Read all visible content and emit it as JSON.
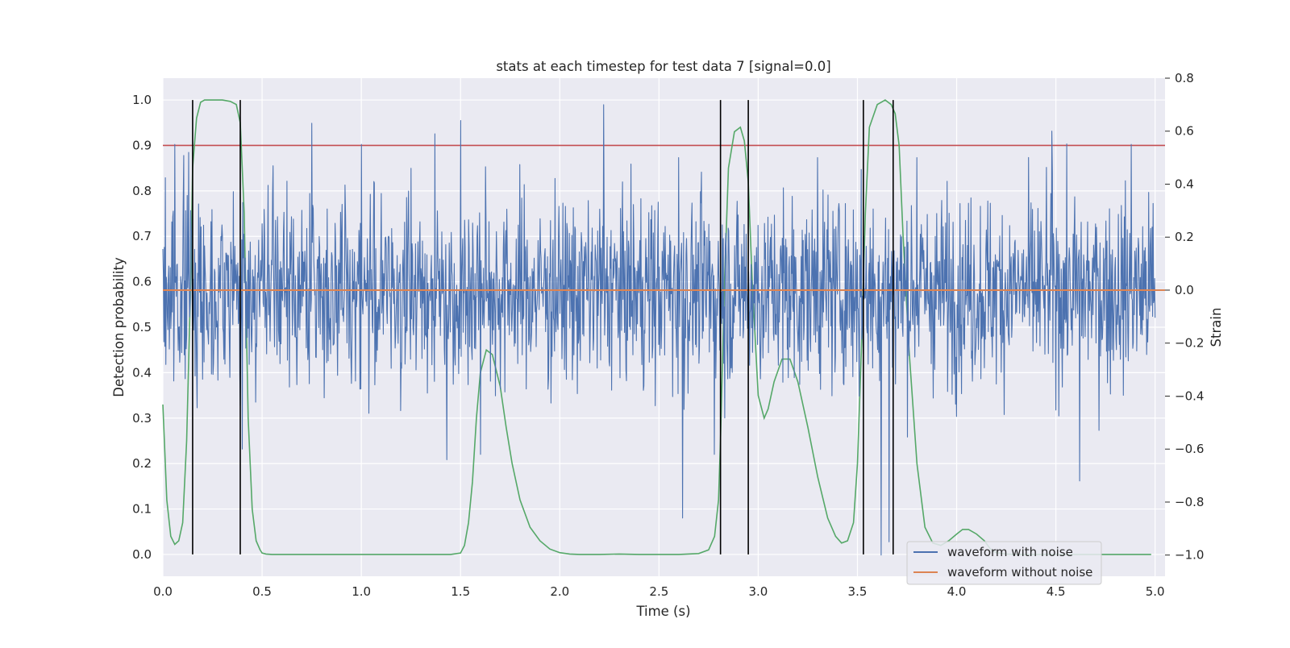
{
  "chart_data": {
    "type": "line",
    "title": "stats at each timestep for test data 7 [signal=0.0]",
    "xlabel": "Time (s)",
    "ylabel": "Detection probability",
    "y2label": "Strain",
    "xlim": [
      0.0,
      5.05
    ],
    "ylim": [
      -0.048,
      1.048
    ],
    "y2lim": [
      -1.08,
      0.8
    ],
    "x_ticks": [
      0.0,
      0.5,
      1.0,
      1.5,
      2.0,
      2.5,
      3.0,
      3.5,
      4.0,
      4.5,
      5.0
    ],
    "x_tick_labels": [
      "0.0",
      "0.5",
      "1.0",
      "1.5",
      "2.0",
      "2.5",
      "3.0",
      "3.5",
      "4.0",
      "4.5",
      "5.0"
    ],
    "y_ticks": [
      0.0,
      0.1,
      0.2,
      0.3,
      0.4,
      0.5,
      0.6,
      0.7,
      0.8,
      0.9,
      1.0
    ],
    "y_tick_labels": [
      "0.0",
      "0.1",
      "0.2",
      "0.3",
      "0.4",
      "0.5",
      "0.6",
      "0.7",
      "0.8",
      "0.9",
      "1.0"
    ],
    "y2_ticks": [
      -1.0,
      -0.8,
      -0.6,
      -0.4,
      -0.2,
      0.0,
      0.2,
      0.4,
      0.6,
      0.8
    ],
    "y2_tick_labels": [
      "−1.0",
      "−0.8",
      "−0.6",
      "−0.4",
      "−0.2",
      "0.0",
      "0.2",
      "0.4",
      "0.6",
      "0.8"
    ],
    "grid": true,
    "legend_position": "bottom-right",
    "threshold": {
      "value": 0.9,
      "color": "#c44e52"
    },
    "detection_probability": {
      "color": "#55a868",
      "x": [
        0.0,
        0.02,
        0.04,
        0.06,
        0.08,
        0.1,
        0.12,
        0.14,
        0.15,
        0.17,
        0.19,
        0.21,
        0.23,
        0.26,
        0.3,
        0.34,
        0.37,
        0.39,
        0.41,
        0.43,
        0.45,
        0.47,
        0.49,
        0.5,
        0.52,
        0.55,
        0.6,
        0.8,
        1.0,
        1.2,
        1.4,
        1.45,
        1.5,
        1.52,
        1.54,
        1.56,
        1.58,
        1.6,
        1.63,
        1.66,
        1.7,
        1.73,
        1.76,
        1.8,
        1.85,
        1.9,
        1.95,
        2.0,
        2.05,
        2.1,
        2.2,
        2.3,
        2.4,
        2.5,
        2.6,
        2.7,
        2.75,
        2.78,
        2.8,
        2.81,
        2.83,
        2.85,
        2.88,
        2.91,
        2.93,
        2.95,
        2.97,
        3.0,
        3.03,
        3.05,
        3.08,
        3.12,
        3.16,
        3.2,
        3.25,
        3.3,
        3.35,
        3.39,
        3.42,
        3.45,
        3.48,
        3.5,
        3.52,
        3.54,
        3.56,
        3.6,
        3.64,
        3.67,
        3.69,
        3.71,
        3.73,
        3.76,
        3.8,
        3.84,
        3.88,
        3.92,
        3.96,
        4.0,
        4.03,
        4.06,
        4.1,
        4.14,
        4.17,
        4.2,
        4.25,
        4.3,
        4.4,
        4.6,
        4.8,
        4.98
      ],
      "y": [
        0.33,
        0.12,
        0.04,
        0.022,
        0.03,
        0.07,
        0.25,
        0.6,
        0.85,
        0.96,
        0.995,
        1.0,
        1.0,
        1.0,
        1.0,
        0.997,
        0.99,
        0.95,
        0.75,
        0.3,
        0.1,
        0.03,
        0.01,
        0.003,
        0.001,
        0.0,
        0.0,
        0.0,
        0.0,
        0.0,
        0.0,
        0.0,
        0.003,
        0.02,
        0.07,
        0.16,
        0.3,
        0.4,
        0.45,
        0.44,
        0.37,
        0.28,
        0.2,
        0.12,
        0.06,
        0.03,
        0.012,
        0.004,
        0.001,
        0.0,
        0.0,
        0.001,
        0.0,
        0.0,
        0.0,
        0.002,
        0.01,
        0.04,
        0.12,
        0.25,
        0.6,
        0.85,
        0.93,
        0.94,
        0.91,
        0.82,
        0.6,
        0.35,
        0.3,
        0.32,
        0.38,
        0.43,
        0.43,
        0.38,
        0.28,
        0.17,
        0.08,
        0.04,
        0.025,
        0.03,
        0.07,
        0.2,
        0.45,
        0.75,
        0.94,
        0.99,
        1.0,
        0.99,
        0.97,
        0.9,
        0.7,
        0.45,
        0.2,
        0.06,
        0.025,
        0.02,
        0.03,
        0.045,
        0.055,
        0.055,
        0.045,
        0.03,
        0.012,
        0.004,
        0.001,
        0.0,
        0.0,
        0.0,
        0.0,
        0.0
      ]
    },
    "event_markers": {
      "color": "#000000",
      "x": [
        0.15,
        0.39,
        2.81,
        2.95,
        3.53,
        3.68
      ],
      "y_range": [
        0.0,
        1.0
      ]
    },
    "series": [
      {
        "name": "waveform with noise",
        "color": "#4c72b0",
        "axis": "Strain",
        "samples": 2000,
        "mean": 0.0,
        "std": 0.175,
        "min": -1.0,
        "max": 0.7
      },
      {
        "name": "waveform without noise",
        "color": "#dd8452",
        "axis": "Strain",
        "value": 0.0
      }
    ],
    "noise_spikes": [
      {
        "x": 0.06,
        "y": 0.55
      },
      {
        "x": 0.13,
        "y": 0.52
      },
      {
        "x": 0.75,
        "y": 0.63
      },
      {
        "x": 1.0,
        "y": 0.55
      },
      {
        "x": 1.37,
        "y": 0.59
      },
      {
        "x": 1.5,
        "y": 0.64
      },
      {
        "x": 2.22,
        "y": 0.71
      },
      {
        "x": 2.6,
        "y": 0.5
      },
      {
        "x": 3.3,
        "y": 0.5
      },
      {
        "x": 3.8,
        "y": 0.5
      },
      {
        "x": 4.48,
        "y": 0.6
      },
      {
        "x": 4.88,
        "y": 0.55
      },
      {
        "x": 2.62,
        "y": -0.86
      },
      {
        "x": 2.78,
        "y": -0.62
      },
      {
        "x": 3.62,
        "y": -1.0
      },
      {
        "x": 3.66,
        "y": -0.95
      },
      {
        "x": 4.62,
        "y": -0.72
      },
      {
        "x": 1.43,
        "y": -0.64
      },
      {
        "x": 1.6,
        "y": -0.62
      },
      {
        "x": 0.4,
        "y": -0.6
      }
    ]
  }
}
